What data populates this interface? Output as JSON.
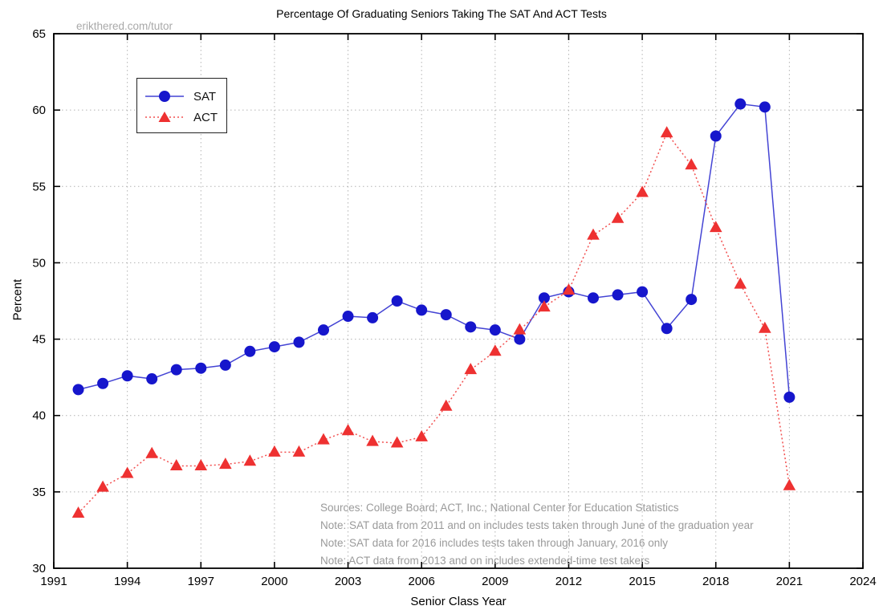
{
  "page": {
    "watermark": "erikthered.com/tutor"
  },
  "chart_data": {
    "type": "line",
    "title": "Percentage Of Graduating Seniors Taking The SAT And ACT Tests",
    "xlabel": "Senior Class Year",
    "ylabel": "Percent",
    "xlim": [
      1991,
      2024
    ],
    "ylim": [
      30,
      65
    ],
    "x_ticks": [
      1991,
      1994,
      1997,
      2000,
      2003,
      2006,
      2009,
      2012,
      2015,
      2018,
      2021,
      2024
    ],
    "y_ticks": [
      30,
      35,
      40,
      45,
      50,
      55,
      60,
      65
    ],
    "grid": true,
    "legend_position": "upper-left",
    "x": [
      1992,
      1993,
      1994,
      1995,
      1996,
      1997,
      1998,
      1999,
      2000,
      2001,
      2002,
      2003,
      2004,
      2005,
      2006,
      2007,
      2008,
      2009,
      2010,
      2011,
      2012,
      2013,
      2014,
      2015,
      2016,
      2017,
      2018,
      2019,
      2020,
      2021
    ],
    "series": [
      {
        "name": "SAT",
        "marker": "circle",
        "line_style": "solid",
        "line_color": "#4444d4",
        "marker_color": "#1616cc",
        "values": [
          41.7,
          42.1,
          42.6,
          42.4,
          43.0,
          43.1,
          43.3,
          44.2,
          44.5,
          44.8,
          45.6,
          46.5,
          46.4,
          47.5,
          46.9,
          46.6,
          45.8,
          45.6,
          45.0,
          47.7,
          48.1,
          47.7,
          47.9,
          48.1,
          45.7,
          47.6,
          58.3,
          60.4,
          60.2,
          41.2
        ]
      },
      {
        "name": "ACT",
        "marker": "triangle",
        "line_style": "dotted",
        "line_color": "#f25050",
        "marker_color": "#ee3131",
        "values": [
          33.6,
          35.3,
          36.2,
          37.5,
          36.7,
          36.7,
          36.8,
          37.0,
          37.6,
          37.6,
          38.4,
          39.0,
          38.3,
          38.2,
          38.6,
          40.6,
          43.0,
          44.2,
          45.6,
          47.1,
          48.2,
          51.8,
          52.9,
          54.6,
          58.5,
          56.4,
          52.3,
          48.6,
          45.7,
          35.4
        ]
      }
    ],
    "notes": [
      "Sources: College Board; ACT, Inc.; National Center for Education Statistics",
      "Note: SAT data from 2011 and on includes tests taken through June of the graduation year",
      "Note: SAT data for 2016 includes tests taken through January, 2016 only",
      "Note: ACT data from 2013 and on includes extended-time test takers"
    ],
    "colors": {
      "grid": "#b3b3b3",
      "frame": "#000000",
      "muted_text": "#9a9a9a"
    }
  }
}
